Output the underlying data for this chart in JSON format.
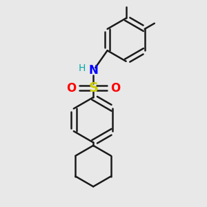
{
  "background_color": "#e8e8e8",
  "bond_color": "#1a1a1a",
  "bond_width": 1.8,
  "S_color": "#cccc00",
  "O_color": "#ff0000",
  "N_color": "#0000ff",
  "H_color": "#00aaaa",
  "figsize": [
    3.0,
    3.0
  ],
  "dpi": 100,
  "xlim": [
    0.0,
    10.0
  ],
  "ylim": [
    0.0,
    10.0
  ]
}
